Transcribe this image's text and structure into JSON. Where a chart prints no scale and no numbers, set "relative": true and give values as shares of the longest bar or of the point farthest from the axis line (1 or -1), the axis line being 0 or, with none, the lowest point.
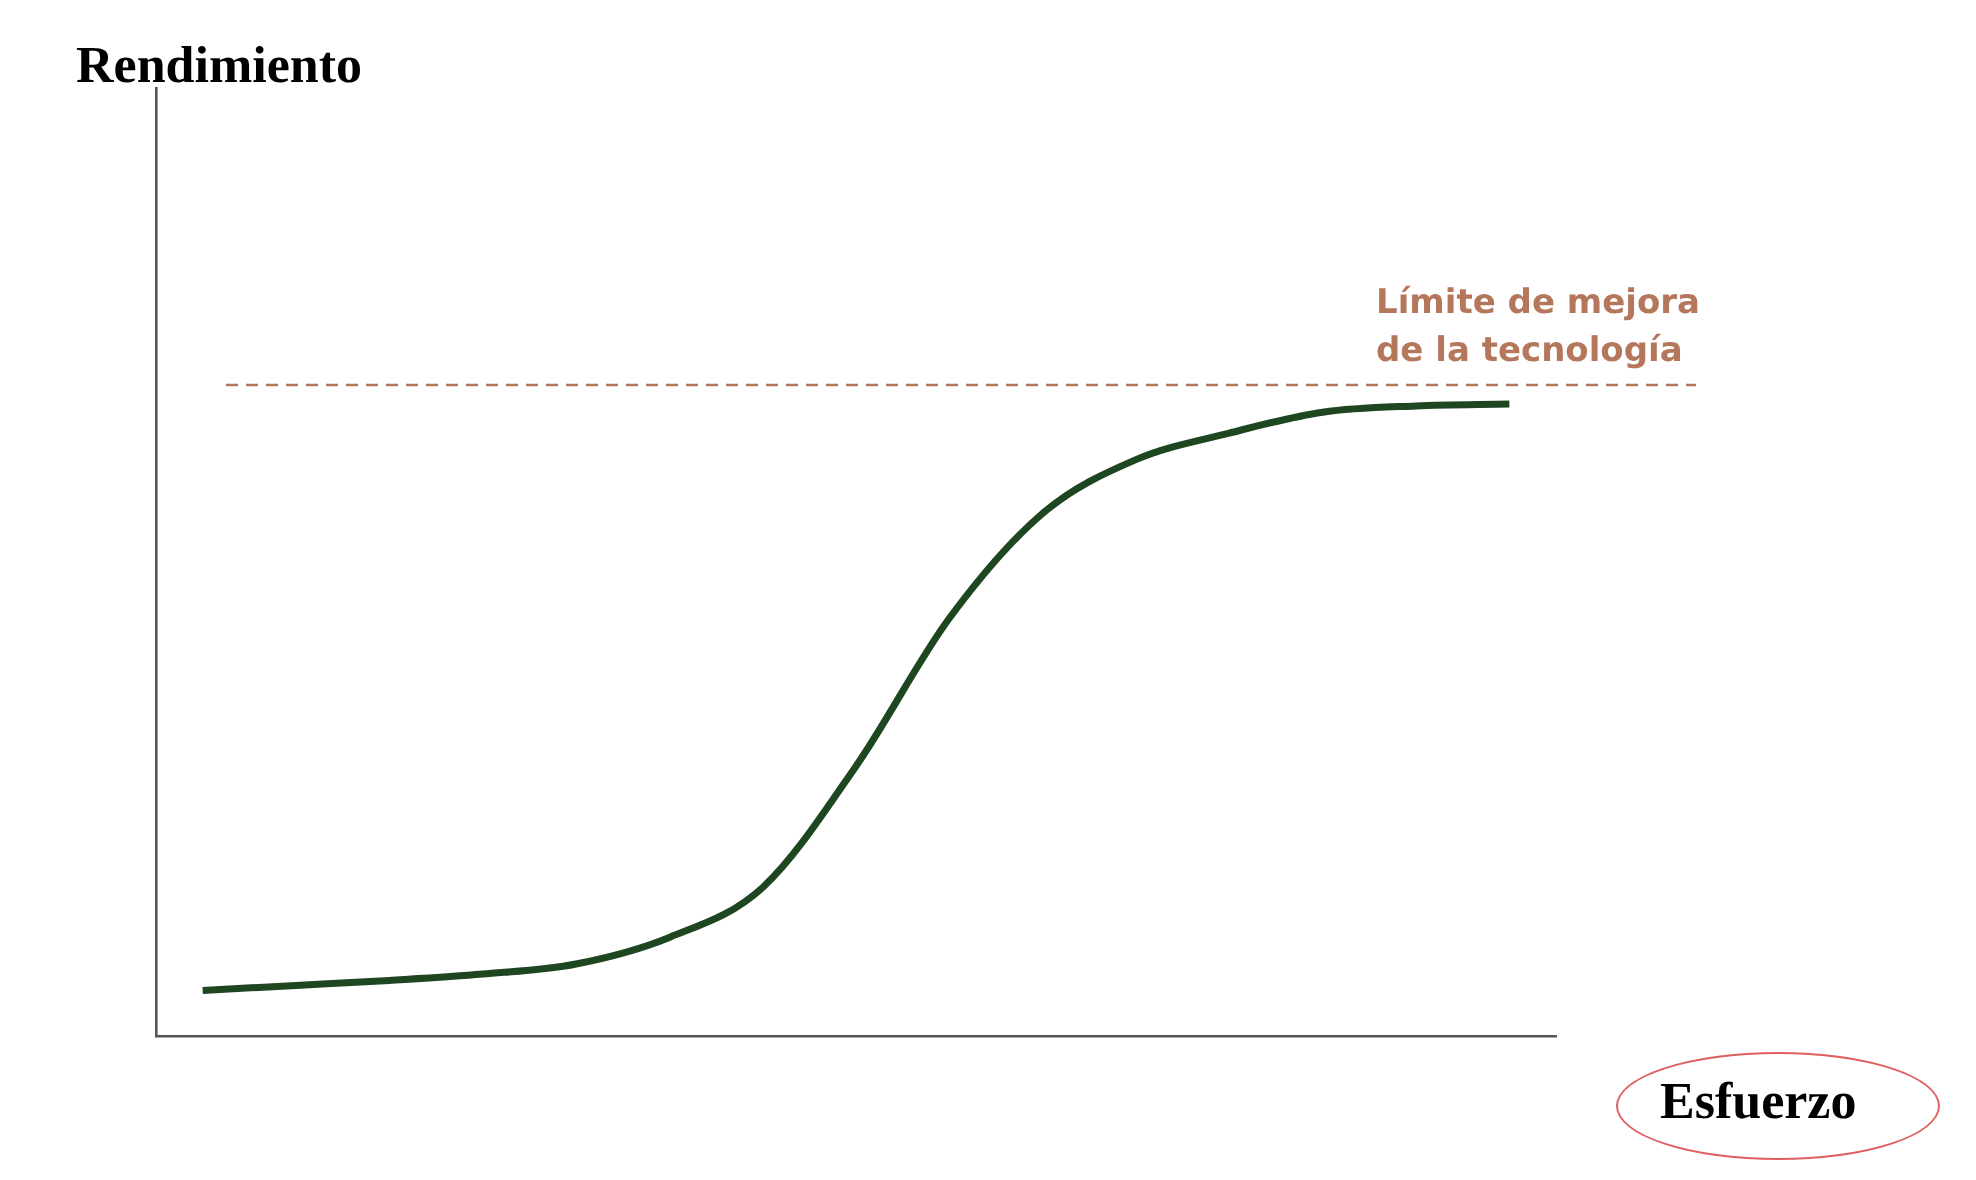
{
  "chart_data": {
    "type": "line",
    "relative": true,
    "xlabel": "Esfuerzo",
    "annotations": [
      "Rendimiento"
    ],
    "categories": [
      null,
      null,
      null,
      null,
      null,
      null,
      null,
      null,
      null,
      null,
      null,
      null,
      null,
      null,
      null
    ],
    "series": [
      {
        "color": "#1e4620",
        "values": [
          0.072,
          0.08,
          0.088,
          0.098,
          0.114,
          0.156,
          0.235,
          0.427,
          0.661,
          0.827,
          0.912,
          0.954,
          0.987,
          0.997,
          1
        ]
      }
    ],
    "ref_lines": [
      {
        "axis": "y",
        "value": 1.03,
        "label": "Límite de mejora de la tecnología",
        "color": "#b5775c",
        "line_style": "dashed"
      }
    ]
  }
}
